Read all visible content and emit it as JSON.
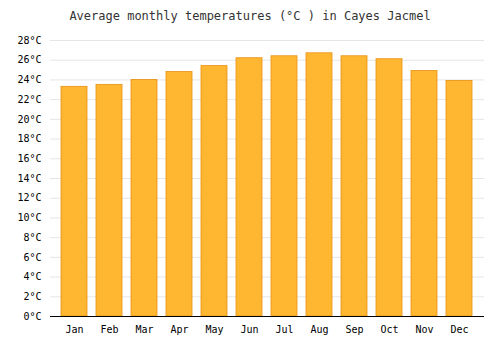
{
  "chart_data": {
    "type": "bar",
    "title": "Average monthly temperatures (°C ) in Cayes Jacmel",
    "categories": [
      "Jan",
      "Feb",
      "Mar",
      "Apr",
      "May",
      "Jun",
      "Jul",
      "Aug",
      "Sep",
      "Oct",
      "Nov",
      "Dec"
    ],
    "values": [
      23.3,
      23.5,
      24.0,
      24.8,
      25.4,
      26.2,
      26.4,
      26.7,
      26.4,
      26.1,
      24.9,
      23.9
    ],
    "color": "#FFB732",
    "ylim": [
      0,
      28
    ],
    "yticks": [
      {
        "value": 0,
        "label": "0°C"
      },
      {
        "value": 2,
        "label": "2°C"
      },
      {
        "value": 4,
        "label": "4°C"
      },
      {
        "value": 6,
        "label": "6°C"
      },
      {
        "value": 8,
        "label": "8°C"
      },
      {
        "value": 10,
        "label": "10°C"
      },
      {
        "value": 12,
        "label": "12°C"
      },
      {
        "value": 14,
        "label": "14°C"
      },
      {
        "value": 16,
        "label": "16°C"
      },
      {
        "value": 18,
        "label": "18°C"
      },
      {
        "value": 20,
        "label": "20°C"
      },
      {
        "value": 22,
        "label": "22°C"
      },
      {
        "value": 24,
        "label": "24°C"
      },
      {
        "value": 26,
        "label": "26°C"
      },
      {
        "value": 28,
        "label": "28°C"
      }
    ],
    "grid": true
  }
}
